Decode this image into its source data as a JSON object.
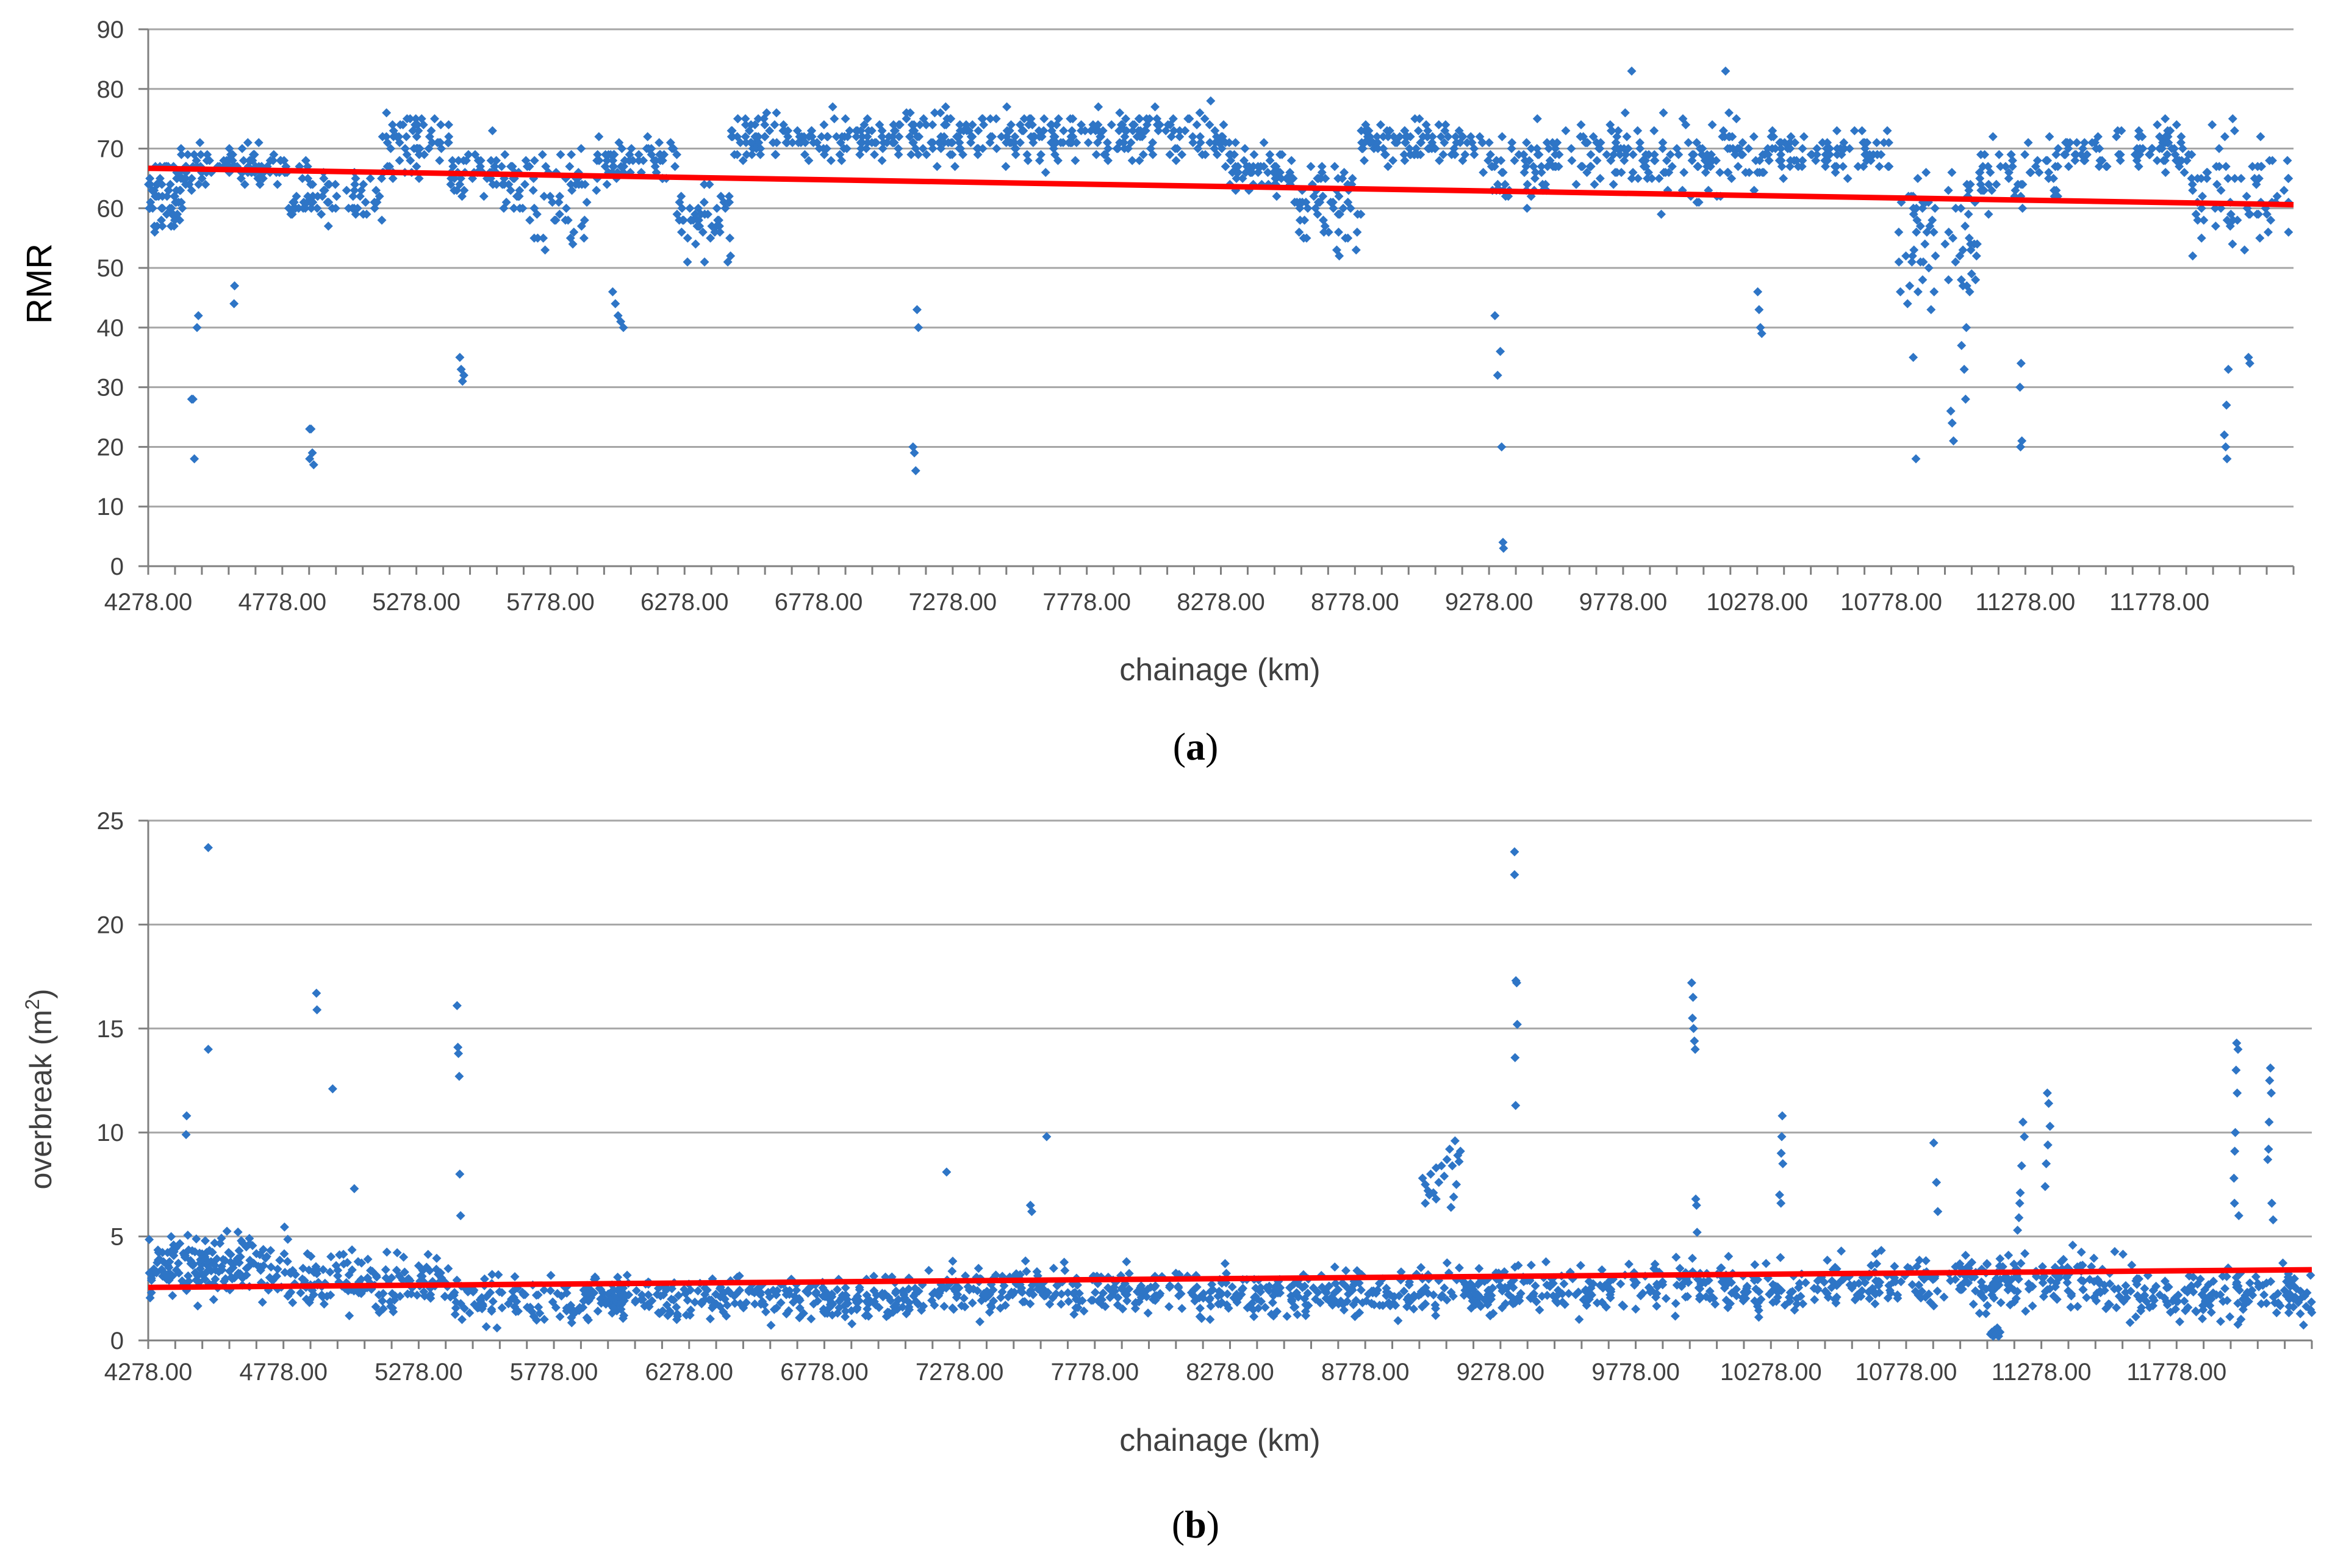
{
  "colors": {
    "points": "#2E75C6",
    "trend": "#FF0000",
    "grid": "#A6A6A6",
    "axis": "#7F7F7F",
    "text": "#404040"
  },
  "chart_data": [
    {
      "id": "a",
      "type": "scatter",
      "subtitle_open": "(",
      "subtitle_letter": "a",
      "subtitle_close": ")",
      "xlabel": "chainage (km)",
      "ylabel": "RMR",
      "xlim": [
        4278,
        12278
      ],
      "ylim": [
        0,
        90
      ],
      "y_ticks": [
        "0",
        "10",
        "20",
        "30",
        "40",
        "50",
        "60",
        "70",
        "80",
        "90"
      ],
      "x_ticks": [
        "4278.00",
        "4778.00",
        "5278.00",
        "5778.00",
        "6278.00",
        "6778.00",
        "7278.00",
        "7778.00",
        "8278.00",
        "8778.00",
        "9278.00",
        "9778.00",
        "10278.00",
        "10778.00",
        "11278.00",
        "11778.00"
      ],
      "trend": {
        "x": [
          4278,
          12278
        ],
        "y": [
          66.7,
          60.6
        ]
      },
      "series": {
        "name": "RMR",
        "segments": [
          {
            "x0": 4278,
            "x1": 4420,
            "base": 63,
            "spread": 7,
            "n": 70
          },
          {
            "x0": 4420,
            "x1": 4800,
            "base": 67,
            "spread": 4,
            "n": 80
          },
          {
            "x0": 4800,
            "x1": 5150,
            "base": 62,
            "spread": 5,
            "n": 70
          },
          {
            "x0": 5150,
            "x1": 5400,
            "base": 70,
            "spread": 6,
            "n": 60
          },
          {
            "x0": 5400,
            "x1": 5650,
            "base": 66,
            "spread": 6,
            "n": 55
          },
          {
            "x0": 5650,
            "x1": 5950,
            "base": 62,
            "spread": 9,
            "n": 60
          },
          {
            "x0": 5950,
            "x1": 6250,
            "base": 68,
            "spread": 4,
            "n": 60
          },
          {
            "x0": 6250,
            "x1": 6450,
            "base": 57,
            "spread": 7,
            "n": 50
          },
          {
            "x0": 6450,
            "x1": 7100,
            "base": 72,
            "spread": 4,
            "n": 130
          },
          {
            "x0": 7100,
            "x1": 7600,
            "base": 72,
            "spread": 5,
            "n": 110
          },
          {
            "x0": 7600,
            "x1": 8300,
            "base": 72,
            "spread": 5,
            "n": 140
          },
          {
            "x0": 8300,
            "x1": 8550,
            "base": 67,
            "spread": 5,
            "n": 60
          },
          {
            "x0": 8550,
            "x1": 8800,
            "base": 60,
            "spread": 7,
            "n": 60
          },
          {
            "x0": 8800,
            "x1": 9280,
            "base": 71,
            "spread": 4,
            "n": 100
          },
          {
            "x0": 9280,
            "x1": 9500,
            "base": 67,
            "spread": 7,
            "n": 50
          },
          {
            "x0": 9500,
            "x1": 9900,
            "base": 69,
            "spread": 6,
            "n": 80
          },
          {
            "x0": 9900,
            "x1": 10300,
            "base": 68,
            "spread": 8,
            "n": 80
          },
          {
            "x0": 10300,
            "x1": 10800,
            "base": 69,
            "spread": 4,
            "n": 90
          },
          {
            "x0": 10800,
            "x1": 11100,
            "base": 55,
            "spread": 12,
            "n": 70
          },
          {
            "x0": 11100,
            "x1": 11400,
            "base": 66,
            "spread": 6,
            "n": 55
          },
          {
            "x0": 11400,
            "x1": 11900,
            "base": 70,
            "spread": 4,
            "n": 90
          },
          {
            "x0": 11900,
            "x1": 12278,
            "base": 62,
            "spread": 10,
            "n": 70
          }
        ],
        "points": [
          [
            4440,
            28
          ],
          [
            4445,
            28
          ],
          [
            4450,
            18
          ],
          [
            4460,
            40
          ],
          [
            4465,
            42
          ],
          [
            4600,
            47
          ],
          [
            4598,
            44
          ],
          [
            4880,
            23
          ],
          [
            4885,
            23
          ],
          [
            4890,
            19
          ],
          [
            4895,
            17
          ],
          [
            4880,
            18
          ],
          [
            5440,
            35
          ],
          [
            5445,
            33
          ],
          [
            5450,
            31
          ],
          [
            5455,
            32
          ],
          [
            6010,
            46
          ],
          [
            6020,
            44
          ],
          [
            6030,
            42
          ],
          [
            6040,
            41
          ],
          [
            6050,
            40
          ],
          [
            7130,
            20
          ],
          [
            7135,
            19
          ],
          [
            7140,
            16
          ],
          [
            7150,
            40
          ],
          [
            7145,
            43
          ],
          [
            9310,
            32
          ],
          [
            9320,
            36
          ],
          [
            9325,
            20
          ],
          [
            9330,
            4
          ],
          [
            9332,
            3
          ],
          [
            9300,
            42
          ],
          [
            10280,
            46
          ],
          [
            10285,
            43
          ],
          [
            10290,
            40
          ],
          [
            10295,
            39
          ],
          [
            10860,
            35
          ],
          [
            10870,
            18
          ],
          [
            11000,
            26
          ],
          [
            11005,
            24
          ],
          [
            11010,
            21
          ],
          [
            11040,
            37
          ],
          [
            11050,
            33
          ],
          [
            11055,
            28
          ],
          [
            11260,
            20
          ],
          [
            11265,
            21
          ],
          [
            11258,
            30
          ],
          [
            11262,
            34
          ],
          [
            12020,
            22
          ],
          [
            12025,
            20
          ],
          [
            12030,
            18
          ],
          [
            12028,
            27
          ],
          [
            12035,
            33
          ],
          [
            12110,
            35
          ],
          [
            12115,
            34
          ],
          [
            9810,
            83
          ],
          [
            10160,
            83
          ]
        ]
      }
    },
    {
      "id": "b",
      "type": "scatter",
      "subtitle_open": "(",
      "subtitle_letter": "b",
      "subtitle_close": ")",
      "xlabel": "chainage (km)",
      "ylabel_main": "overbreak (m",
      "ylabel_sup": "2",
      "ylabel_end": ")",
      "xlim": [
        4278,
        12278
      ],
      "ylim": [
        0,
        25
      ],
      "y_ticks": [
        "0",
        "5",
        "10",
        "15",
        "20",
        "25"
      ],
      "x_ticks": [
        "4278.00",
        "4778.00",
        "5278.00",
        "5778.00",
        "6278.00",
        "6778.00",
        "7278.00",
        "7778.00",
        "8278.00",
        "8778.00",
        "9278.00",
        "9778.00",
        "10278.00",
        "10778.00",
        "11278.00",
        "11778.00"
      ],
      "trend": {
        "x": [
          4278,
          12278
        ],
        "y": [
          2.55,
          3.4
        ]
      },
      "series": {
        "name": "overbreak",
        "segments": [
          {
            "x0": 4278,
            "x1": 4800,
            "base": 3.6,
            "spread": 1.6,
            "n": 170
          },
          {
            "x0": 4800,
            "x1": 5400,
            "base": 2.8,
            "spread": 1.5,
            "n": 150
          },
          {
            "x0": 5400,
            "x1": 6300,
            "base": 2.0,
            "spread": 1.2,
            "n": 200
          },
          {
            "x0": 6300,
            "x1": 7200,
            "base": 2.0,
            "spread": 1.1,
            "n": 200
          },
          {
            "x0": 7200,
            "x1": 8100,
            "base": 2.4,
            "spread": 1.2,
            "n": 200
          },
          {
            "x0": 8100,
            "x1": 8900,
            "base": 2.2,
            "spread": 1.2,
            "n": 170
          },
          {
            "x0": 8900,
            "x1": 9800,
            "base": 2.4,
            "spread": 1.2,
            "n": 190
          },
          {
            "x0": 9800,
            "x1": 10800,
            "base": 2.6,
            "spread": 1.3,
            "n": 200
          },
          {
            "x0": 10800,
            "x1": 11600,
            "base": 2.8,
            "spread": 1.4,
            "n": 180
          },
          {
            "x0": 11600,
            "x1": 12278,
            "base": 2.2,
            "spread": 1.3,
            "n": 150
          }
        ],
        "points": [
          [
            4500,
            23.7
          ],
          [
            4500,
            14.0
          ],
          [
            4420,
            10.8
          ],
          [
            4418,
            9.9
          ],
          [
            4900,
            16.7
          ],
          [
            4902,
            15.9
          ],
          [
            4960,
            12.1
          ],
          [
            5040,
            7.3
          ],
          [
            5420,
            16.1
          ],
          [
            5423,
            14.1
          ],
          [
            5425,
            13.8
          ],
          [
            5428,
            12.7
          ],
          [
            5430,
            8.0
          ],
          [
            5433,
            6.0
          ],
          [
            7230,
            8.1
          ],
          [
            7540,
            6.5
          ],
          [
            7545,
            6.2
          ],
          [
            7600,
            9.8
          ],
          [
            8990,
            7.8
          ],
          [
            9000,
            7.5
          ],
          [
            9010,
            7.2
          ],
          [
            9020,
            8.0
          ],
          [
            9030,
            7.1
          ],
          [
            9040,
            6.8
          ],
          [
            9050,
            7.6
          ],
          [
            9060,
            8.4
          ],
          [
            9070,
            7.9
          ],
          [
            9080,
            8.7
          ],
          [
            9090,
            9.2
          ],
          [
            9100,
            8.4
          ],
          [
            9110,
            9.6
          ],
          [
            9120,
            8.9
          ],
          [
            9095,
            6.4
          ],
          [
            9105,
            6.9
          ],
          [
            9115,
            7.5
          ],
          [
            9125,
            8.6
          ],
          [
            9130,
            9.1
          ],
          [
            9000,
            6.6
          ],
          [
            9015,
            7.0
          ],
          [
            9040,
            8.3
          ],
          [
            9330,
            23.5
          ],
          [
            9330,
            22.4
          ],
          [
            9335,
            17.3
          ],
          [
            9338,
            17.2
          ],
          [
            9340,
            15.2
          ],
          [
            9332,
            13.6
          ],
          [
            9334,
            11.3
          ],
          [
            9985,
            17.2
          ],
          [
            9990,
            16.5
          ],
          [
            9988,
            15.5
          ],
          [
            9992,
            15.0
          ],
          [
            9995,
            14.4
          ],
          [
            9998,
            14.0
          ],
          [
            10000,
            6.8
          ],
          [
            10003,
            6.5
          ],
          [
            10005,
            5.2
          ],
          [
            10320,
            10.8
          ],
          [
            10318,
            9.8
          ],
          [
            10316,
            9.0
          ],
          [
            10322,
            8.5
          ],
          [
            10310,
            7.0
          ],
          [
            10315,
            6.6
          ],
          [
            10880,
            9.5
          ],
          [
            10890,
            7.6
          ],
          [
            10895,
            6.2
          ],
          [
            11210,
            10.5
          ],
          [
            11215,
            9.8
          ],
          [
            11205,
            8.4
          ],
          [
            11200,
            7.1
          ],
          [
            11198,
            6.6
          ],
          [
            11195,
            5.9
          ],
          [
            11190,
            5.3
          ],
          [
            11300,
            11.9
          ],
          [
            11305,
            11.4
          ],
          [
            11310,
            10.3
          ],
          [
            11302,
            9.4
          ],
          [
            11296,
            8.5
          ],
          [
            11292,
            7.4
          ],
          [
            11090,
            0.3
          ],
          [
            11095,
            0.4
          ],
          [
            11100,
            0.2
          ],
          [
            11105,
            0.5
          ],
          [
            11110,
            0.3
          ],
          [
            11115,
            0.6
          ],
          [
            11120,
            0.2
          ],
          [
            11125,
            0.4
          ],
          [
            12000,
            14.3
          ],
          [
            12005,
            14.0
          ],
          [
            11998,
            13.0
          ],
          [
            12002,
            11.9
          ],
          [
            11995,
            10.0
          ],
          [
            11993,
            9.1
          ],
          [
            11990,
            7.8
          ],
          [
            11992,
            6.6
          ],
          [
            12008,
            6.0
          ],
          [
            12125,
            13.1
          ],
          [
            12122,
            12.5
          ],
          [
            12128,
            11.9
          ],
          [
            12120,
            10.5
          ],
          [
            12118,
            9.2
          ],
          [
            12115,
            8.7
          ],
          [
            12130,
            6.6
          ],
          [
            12135,
            5.8
          ]
        ]
      }
    }
  ]
}
